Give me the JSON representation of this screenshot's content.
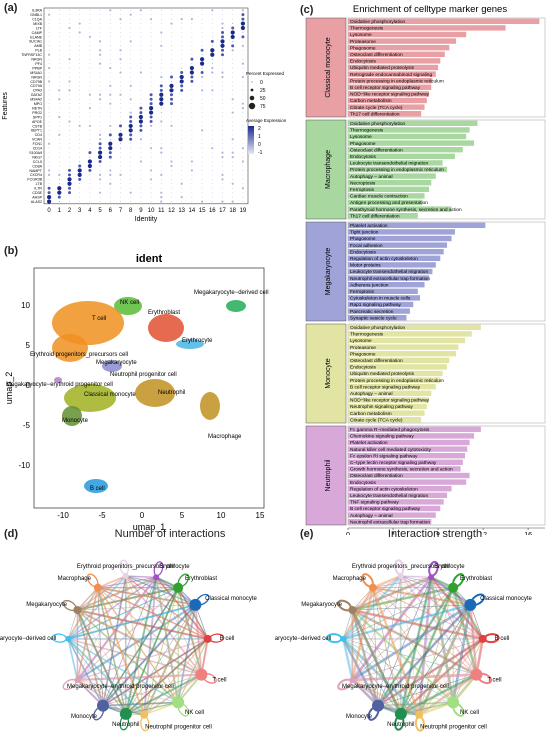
{
  "panel_labels": {
    "a": "(a)",
    "b": "(b)",
    "c": "(c)",
    "d": "(d)",
    "e": "(e)"
  },
  "panel_a": {
    "ylabel": "Features",
    "xlabel": "Identity",
    "features": [
      "IL3RA",
      "GNBL1",
      "C1QA",
      "MIXB",
      "LTF",
      "CAMP",
      "ELANE",
      "SUCIA1",
      "AMB",
      "PLB",
      "TNFRSF13C",
      "NRGN",
      "PF4",
      "PPBP",
      "MS4A1",
      "NRGN",
      "CD79B",
      "CD79A",
      "CPA3",
      "GATA2",
      "MS4A2",
      "MPO",
      "RETN",
      "PRG2",
      "SPP1",
      "APOE",
      "CSTB",
      "SEPT1",
      "CD4",
      "VCAN",
      "FCN1",
      "CD14",
      "S100A9",
      "NKG7",
      "CCL5",
      "CD8A",
      "NAMPT",
      "CXCR4",
      "FCGR3B",
      "LTB",
      "IL7R",
      "CD3E",
      "AHSP",
      "ALAS2"
    ],
    "identity_ticks": [
      "0",
      "1",
      "2",
      "3",
      "4",
      "5",
      "6",
      "7",
      "8",
      "9",
      "10",
      "11",
      "12",
      "13",
      "14",
      "15",
      "16",
      "17",
      "18",
      "19"
    ],
    "legend_pct_title": "Percent Expressed",
    "legend_pct": [
      "0",
      "25",
      "50",
      "75"
    ],
    "legend_avg_title": "Average Expression",
    "legend_avg": [
      "2",
      "1",
      "0",
      "-1"
    ]
  },
  "panel_b": {
    "title": "ident",
    "xlabel": "umap_1",
    "ylabel": "umap_2",
    "xticks": [
      "-10",
      "-5",
      "0",
      "5",
      "10",
      "15"
    ],
    "yticks": [
      "10",
      "5",
      "0",
      "-5",
      "-10"
    ],
    "clusters": {
      "nk": "NK cell",
      "mk_derived": "Megakaryocyte−derived cell",
      "t": "T cell",
      "erythroblast": "Erythroblast",
      "erythrocyte": "Erythrocyte",
      "ery_prog": "Erythroid progenitors_precursors cell",
      "megakaryocyte": "Megakaryocyte",
      "neut_prog": "Neutrophil progenitor cell",
      "mk_ery_prog": "Megakaryocyte−erythroid progenitor cell",
      "classical_mono": "Classical monocyte",
      "neutrophil": "Neutrophil",
      "monocyte": "Monocyte",
      "macrophage": "Macrophage",
      "b": "B cell"
    }
  },
  "panel_c": {
    "title": "Enrichment of celltype marker genes",
    "xlabel": "Z−Score",
    "xticks": [
      "0",
      "4",
      "8",
      "12",
      "16"
    ],
    "groups": [
      {
        "name": "Classical monocyte",
        "color": "#e8a0a4",
        "terms": [
          "Oxidative phosphorylation",
          "Thermogenesis",
          "Lysosome",
          "Proteasome",
          "Phagosome",
          "Osteoclast differentiation",
          "Endocytosis",
          "Ubiquitin mediated proteolysis",
          "Retrograde endocannabinoid signaling",
          "Protein processing in endoplasmic reticulum",
          "B cell receptor signaling pathway",
          "NOD−like receptor signaling pathway",
          "Carbon metabolism",
          "Citrate cycle (TCA cycle)",
          "Th17 cell differentiation"
        ],
        "values": [
          17,
          14,
          10.5,
          9.6,
          9,
          8.6,
          8.2,
          8,
          7.8,
          7.5,
          7.4,
          7.2,
          7,
          6.8,
          6.5
        ]
      },
      {
        "name": "Macrophage",
        "color": "#a8d8a0",
        "terms": [
          "Oxidative phosphorylation",
          "Thermogenesis",
          "Lysosome",
          "Phagosome",
          "Osteoclast differentiation",
          "Endocytosis",
          "Leukocyte transendothelial migration",
          "Protein processing in endoplasmic reticulum",
          "Autophagy − animal",
          "Necroptosis",
          "Ferroptosis",
          "Cardiac muscle contraction",
          "Antigen processing and presentation",
          "Parathyroid hormone synthesis, secretion and action",
          "Th17 cell differentiation"
        ],
        "values": [
          11.5,
          10.8,
          10.5,
          11.2,
          10.2,
          9.5,
          8.4,
          8.8,
          7.8,
          7.4,
          7.2,
          6.8,
          6.6,
          9.2,
          6.2
        ]
      },
      {
        "name": "Megakaryocyte",
        "color": "#9fa3d8",
        "terms": [
          "Platelet activation",
          "Tight junction",
          "Phagosome",
          "Focal adhesion",
          "Endocytosis",
          "Regulation of actin cytoskeleton",
          "Motor proteins",
          "Leukocyte transendothelial migration",
          "Neutrophil extracellular trap formation",
          "Adherens junction",
          "Ferroptosis",
          "Cytoskeleton in muscle cells",
          "Rap1 signaling pathway",
          "Pancreatic secretion",
          "Synaptic vesicle cycle"
        ],
        "values": [
          12.2,
          9.5,
          9.2,
          8.8,
          8.5,
          8.2,
          7.8,
          7.5,
          7.2,
          6.8,
          6.2,
          6.4,
          5.8,
          5.5,
          5.2
        ]
      },
      {
        "name": "Monocyte",
        "color": "#e2e4a4",
        "terms": [
          "Oxidative phosphorylation",
          "Thermogenesis",
          "Lysosome",
          "Proteasome",
          "Phagosome",
          "Osteoclast differentiation",
          "Endocytosis",
          "Ubiquitin mediated proteolysis",
          "Protein processing in endoplasmic reticulum",
          "B cell receptor signaling pathway",
          "Autophagy − animal",
          "NOD−like receptor signaling pathway",
          "Neutrophin signaling pathway",
          "Carbon metabolism",
          "Citrate cycle (TCA cycle)"
        ],
        "values": [
          11.8,
          11,
          10.4,
          9.8,
          9.6,
          9,
          8.8,
          8.4,
          8.2,
          7.8,
          7.4,
          7.2,
          7,
          6.8,
          6.5
        ]
      },
      {
        "name": "Neutrophil",
        "color": "#d8a8d8",
        "terms": [
          "Fc gamma R−mediated phagocytosis",
          "Chemokine signaling pathway",
          "Platelet activation",
          "Natural killer cell mediated cytotoxicity",
          "Fc epsilon RI signaling pathway",
          "C−type lectin receptor signaling pathway",
          "Growth hormone synthesis, secretion and action",
          "Osteoclast differentiation",
          "Endocytosis",
          "Regulation of actin cytoskeleton",
          "Leukocyte transendothelial migration",
          "TNF signaling pathway",
          "B cell receptor signaling pathway",
          "Autophagy − animal",
          "Neutrophil extracellular trap formation"
        ],
        "values": [
          11.8,
          11.2,
          10.8,
          10.6,
          10.4,
          10.2,
          10,
          10.8,
          10.5,
          9.2,
          8.8,
          8.5,
          8.2,
          7.8,
          7.4
        ]
      }
    ]
  },
  "panel_d": {
    "title": "Number of interactions"
  },
  "panel_e": {
    "title": "Interaction strength"
  },
  "network_nodes": [
    "Erythroid progenitors_precursors cell",
    "Erythrocyte",
    "Erythroblast",
    "Classical monocyte",
    "B cell",
    "T cell",
    "NK cell",
    "Neutrophil progenitor cell",
    "Neutrophil",
    "Monocyte",
    "Megakaryocyte−erythroid progenitor cell",
    "Megakaryocyte−derived cell",
    "Megakaryocyte",
    "Macrophage"
  ],
  "network_colors": [
    "#e8d0e8",
    "#a050c8",
    "#30a030",
    "#1a6ab8",
    "#e04040",
    "#f08080",
    "#a0e080",
    "#f0c060",
    "#209050",
    "#5060a0",
    "#e0a0b8",
    "#40c0f0",
    "#a08060",
    "#f09050"
  ]
}
